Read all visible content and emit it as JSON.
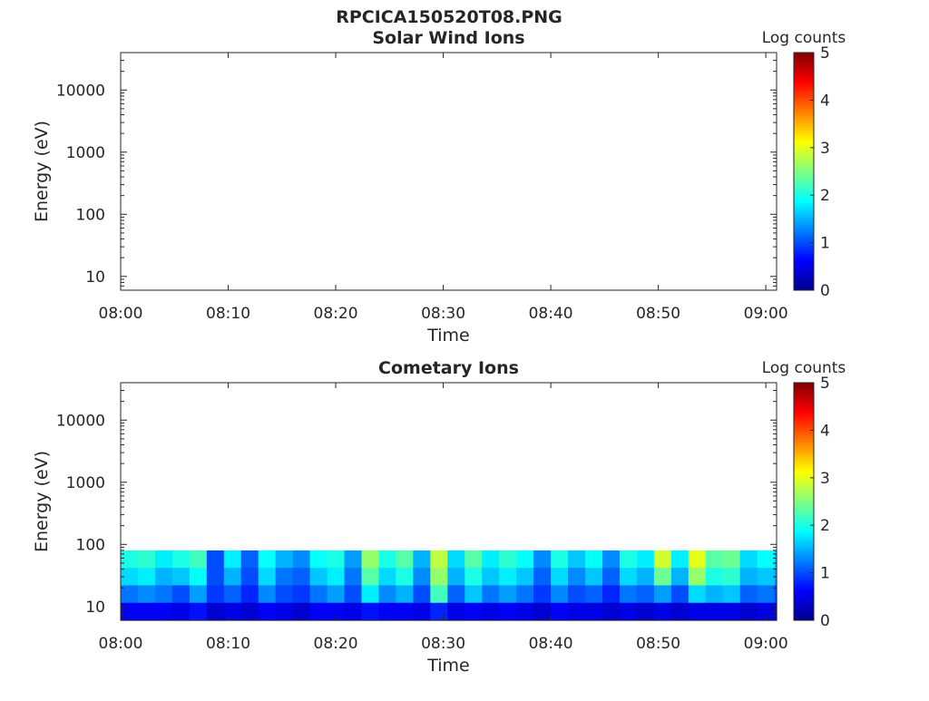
{
  "figure": {
    "title": "RPCICA150520T08.PNG"
  },
  "chart_data": [
    {
      "type": "heatmap",
      "title": "Solar Wind Ions",
      "xlabel": "Time",
      "ylabel": "Energy (eV)",
      "yscale": "log",
      "ylim": [
        6,
        40000
      ],
      "xlim": [
        "08:00",
        "09:01"
      ],
      "xticks": [
        "08:00",
        "08:10",
        "08:20",
        "08:30",
        "08:40",
        "08:50",
        "09:00"
      ],
      "yticks": [
        10,
        100,
        1000,
        10000
      ],
      "yticklabels": [
        "10",
        "100",
        "1000",
        "10000"
      ],
      "colorbar": {
        "label": "Log counts",
        "range": [
          0,
          5
        ],
        "ticks": [
          "0",
          "1",
          "2",
          "3",
          "4",
          "5"
        ],
        "colormap": "jet"
      },
      "energy_max_eV": 0,
      "columns": []
    },
    {
      "type": "heatmap",
      "title": "Cometary Ions",
      "xlabel": "Time",
      "ylabel": "Energy (eV)",
      "yscale": "log",
      "ylim": [
        6,
        40000
      ],
      "xlim": [
        "08:00",
        "09:01"
      ],
      "xticks": [
        "08:00",
        "08:10",
        "08:20",
        "08:30",
        "08:40",
        "08:50",
        "09:00"
      ],
      "yticks": [
        10,
        100,
        1000,
        10000
      ],
      "yticklabels": [
        "10",
        "100",
        "1000",
        "10000"
      ],
      "colorbar": {
        "label": "Log counts",
        "range": [
          0,
          5
        ],
        "ticks": [
          "0",
          "1",
          "2",
          "3",
          "4",
          "5"
        ],
        "colormap": "jet"
      },
      "energy_max_eV": 80,
      "column_minutes": 1.6,
      "columns": [
        [
          2.0,
          1.7,
          1.2,
          0.6
        ],
        [
          2.1,
          1.8,
          1.3,
          0.6
        ],
        [
          1.8,
          1.5,
          1.2,
          0.6
        ],
        [
          2.0,
          1.6,
          1.0,
          0.5
        ],
        [
          2.2,
          1.9,
          1.4,
          0.7
        ],
        [
          1.0,
          1.0,
          0.9,
          0.4
        ],
        [
          1.8,
          1.5,
          1.1,
          0.5
        ],
        [
          1.1,
          1.0,
          0.8,
          0.4
        ],
        [
          1.9,
          1.7,
          1.3,
          0.6
        ],
        [
          1.5,
          1.2,
          1.0,
          0.5
        ],
        [
          1.3,
          1.1,
          0.9,
          0.4
        ],
        [
          1.9,
          1.6,
          1.2,
          0.6
        ],
        [
          2.0,
          1.8,
          1.4,
          0.6
        ],
        [
          1.4,
          1.2,
          1.0,
          0.5
        ],
        [
          2.6,
          2.3,
          1.8,
          0.7
        ],
        [
          2.0,
          1.7,
          1.3,
          0.6
        ],
        [
          2.3,
          2.0,
          1.5,
          0.6
        ],
        [
          1.5,
          1.3,
          1.0,
          0.5
        ],
        [
          2.8,
          2.6,
          2.2,
          0.8
        ],
        [
          1.7,
          1.5,
          1.1,
          0.5
        ],
        [
          2.3,
          2.0,
          1.6,
          0.6
        ],
        [
          1.8,
          1.6,
          1.2,
          0.5
        ],
        [
          2.1,
          1.8,
          1.4,
          0.6
        ],
        [
          1.9,
          1.6,
          1.2,
          0.5
        ],
        [
          1.3,
          1.1,
          0.9,
          0.4
        ],
        [
          2.0,
          1.7,
          1.3,
          0.6
        ],
        [
          1.6,
          1.3,
          1.0,
          0.5
        ],
        [
          1.9,
          1.6,
          1.1,
          0.5
        ],
        [
          1.3,
          1.1,
          0.8,
          0.4
        ],
        [
          2.0,
          1.7,
          1.2,
          0.5
        ],
        [
          1.8,
          1.5,
          1.1,
          0.4
        ],
        [
          2.9,
          2.4,
          1.4,
          0.5
        ],
        [
          1.8,
          1.5,
          1.0,
          0.4
        ],
        [
          3.0,
          2.6,
          1.7,
          0.5
        ],
        [
          2.3,
          2.0,
          1.5,
          0.5
        ],
        [
          2.4,
          2.1,
          1.6,
          0.5
        ],
        [
          1.7,
          1.5,
          1.1,
          0.4
        ],
        [
          1.9,
          1.6,
          1.2,
          0.5
        ],
        [
          1.6,
          1.4,
          1.0,
          0.4
        ]
      ]
    }
  ]
}
